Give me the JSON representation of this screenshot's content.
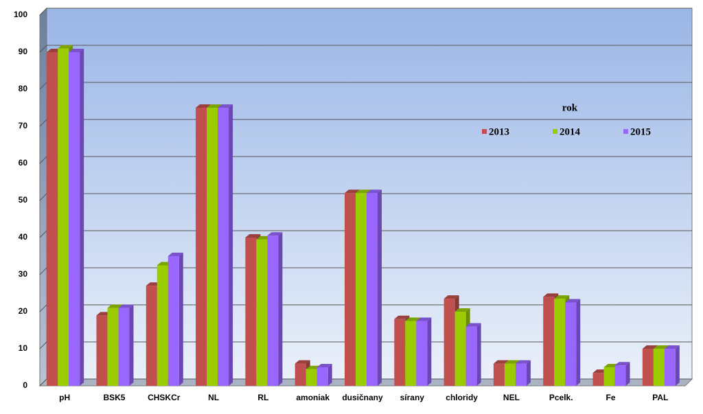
{
  "chart_data": {
    "type": "bar3d",
    "categories": [
      "pH",
      "BSK5",
      "CHSKCr",
      "NL",
      "RL",
      "amoniak",
      "dusičnany",
      "sírany",
      "chloridy",
      "NEL",
      "Pcelk.",
      "Fe",
      "PAL"
    ],
    "legend_title": "rok",
    "legend_position": "upper right",
    "series": [
      {
        "name": "2013",
        "color": "#c0504d",
        "values": [
          90,
          19,
          27,
          75,
          40,
          6,
          52,
          18,
          23.5,
          6,
          24,
          3.5,
          10
        ]
      },
      {
        "name": "2014",
        "color": "#9bcc00",
        "values": [
          91,
          21,
          32.5,
          75,
          39.5,
          4.5,
          52,
          17.5,
          20,
          6,
          23.5,
          5,
          10
        ]
      },
      {
        "name": "2015",
        "color": "#9966ff",
        "values": [
          90,
          21,
          35,
          75,
          40.5,
          5,
          52,
          17.5,
          16,
          6,
          22.5,
          5.5,
          10
        ]
      }
    ],
    "ylim": [
      0,
      100
    ],
    "yticks": [
      0,
      10,
      20,
      30,
      40,
      50,
      60,
      70,
      80,
      90,
      100
    ],
    "grid": true
  }
}
